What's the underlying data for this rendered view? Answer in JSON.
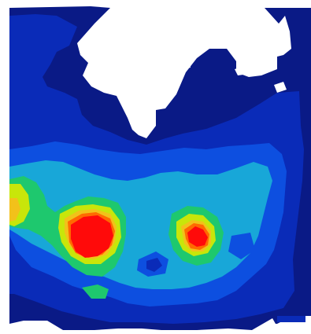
{
  "image": {
    "kind": "contour-heatmap",
    "colors": {
      "background": "#ffffff",
      "level_0": "#0a1a86",
      "level_1": "#0a2bb8",
      "level_2": "#0d4fe0",
      "level_3": "#18a7d8",
      "level_4": "#1ec86e",
      "level_5": "#c8e60a",
      "level_6": "#f2c11a",
      "level_7": "#ff6a00",
      "level_8": "#ff0a0a"
    }
  }
}
